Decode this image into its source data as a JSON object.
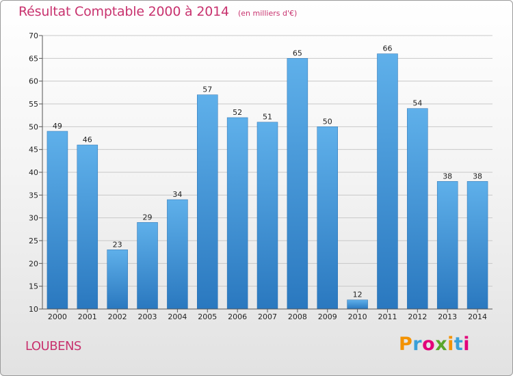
{
  "header": {
    "title": "Résultat Comptable 2000 à 2014",
    "subtitle": "(en milliers d'€)"
  },
  "footer": {
    "town": "LOUBENS",
    "logo_text": "Proxiti",
    "logo_colors": [
      "#f39200",
      "#3aa0d8",
      "#e2007a",
      "#5aa62b",
      "#f39200",
      "#3aa0d8",
      "#e2007a"
    ]
  },
  "colors": {
    "title": "#c8326e",
    "bar_top": "#5fb0ea",
    "bar_bottom": "#2a78bf",
    "grid": "#c8c8c8",
    "axis": "#555555"
  },
  "chart_data": {
    "type": "bar",
    "title": "Résultat Comptable 2000 à 2014",
    "xlabel": "",
    "ylabel": "",
    "categories": [
      "2000",
      "2001",
      "2002",
      "2003",
      "2004",
      "2005",
      "2006",
      "2007",
      "2008",
      "2009",
      "2010",
      "2011",
      "2012",
      "2013",
      "2014"
    ],
    "values": [
      49,
      46,
      23,
      29,
      34,
      57,
      52,
      51,
      65,
      50,
      12,
      66,
      54,
      38,
      38
    ],
    "ylim": [
      10,
      70
    ],
    "yticks": [
      10,
      15,
      20,
      25,
      30,
      35,
      40,
      45,
      50,
      55,
      60,
      65,
      70
    ],
    "grid": true,
    "data_labels": true
  }
}
